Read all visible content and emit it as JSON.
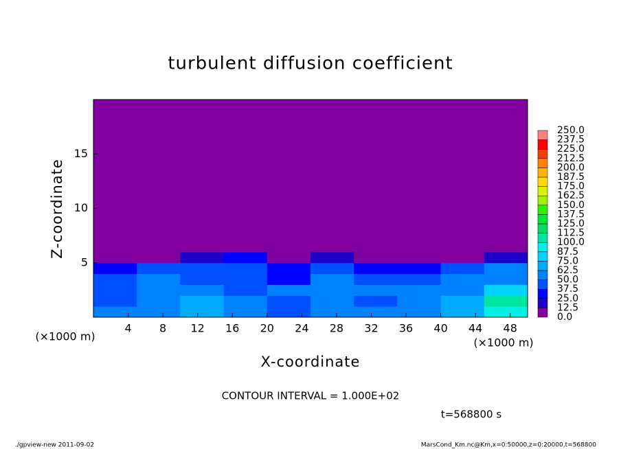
{
  "chart_data": {
    "type": "heatmap",
    "title": "turbulent diffusion coefficient",
    "x_label": "X-coordinate",
    "y_label": "Z-coordinate",
    "x_unit": "(×1000 m)",
    "y_unit": "(×1000 m)",
    "xlim": [
      0,
      50
    ],
    "ylim": [
      0,
      20
    ],
    "xticks": [
      4,
      8,
      12,
      16,
      20,
      24,
      28,
      32,
      36,
      40,
      44,
      48
    ],
    "yticks": [
      5,
      10,
      15
    ],
    "xbins": [
      0,
      5,
      10,
      15,
      20,
      25,
      30,
      35,
      40,
      45,
      50
    ],
    "zbins": [
      0,
      1,
      2,
      3,
      4,
      5,
      6,
      20
    ],
    "values": [
      [
        50,
        60,
        70,
        55,
        45,
        50,
        55,
        60,
        70,
        90
      ],
      [
        40,
        60,
        65,
        50,
        40,
        55,
        45,
        60,
        65,
        100
      ],
      [
        45,
        55,
        50,
        45,
        50,
        55,
        50,
        55,
        60,
        80
      ],
      [
        40,
        50,
        45,
        40,
        35,
        50,
        45,
        40,
        55,
        60
      ],
      [
        35,
        40,
        45,
        40,
        30,
        40,
        30,
        30,
        45,
        50
      ],
      [
        0,
        5,
        20,
        25,
        10,
        15,
        5,
        5,
        10,
        20
      ],
      [
        0,
        0,
        0,
        0,
        0,
        0,
        0,
        0,
        0,
        0
      ]
    ],
    "levels": [
      {
        "value": 0,
        "label": "0.0"
      },
      12.5,
      {
        "value": 25,
        "label": "25.0"
      },
      37.5,
      {
        "value": 50,
        "label": "50.0"
      },
      62.5,
      {
        "value": 75,
        "label": "75.0"
      },
      87.5,
      {
        "value": 100,
        "label": "100.0"
      },
      112.5,
      {
        "value": 125,
        "label": "125.0"
      },
      137.5,
      {
        "value": 150,
        "label": "150.0"
      },
      162.5,
      {
        "value": 175,
        "label": "175.0"
      },
      187.5,
      {
        "value": 200,
        "label": "200.0"
      },
      212.5,
      {
        "value": 225,
        "label": "225.0"
      },
      237.5,
      {
        "value": 250,
        "label": "250.0"
      }
    ],
    "colors": [
      "#8000a0",
      "#1e00c8",
      "#0000ff",
      "#0050ff",
      "#0082ff",
      "#00aaff",
      "#00d2ff",
      "#00f0e6",
      "#00e6a0",
      "#00dc64",
      "#00e632",
      "#32f000",
      "#a0f000",
      "#dcf000",
      "#ffdc00",
      "#ffb400",
      "#ff8200",
      "#ff3c00",
      "#ff0000",
      "#ff8080"
    ],
    "contour_interval": "CONTOUR INTERVAL = 1.000E+02",
    "time_label": "t=568800 s",
    "footer_left": "./gpview-new  2011-09-02",
    "footer_right": "MarsCond_Km.nc@Km,x=0:50000,z=0:20000,t=568800"
  }
}
